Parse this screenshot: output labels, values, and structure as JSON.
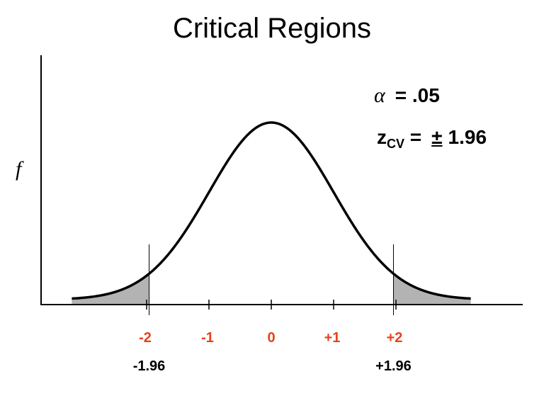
{
  "title": "Critical Regions",
  "y_axis_label": "f",
  "alpha": {
    "symbol": "α",
    "text": "= .05"
  },
  "z_cv": {
    "base": "z",
    "sub": "CV",
    "eq": "=",
    "pm": "±",
    "value": "1.96"
  },
  "colors": {
    "tick_labels": "#e8421c",
    "shade": "#b3b3b3",
    "curve": "#000000"
  },
  "chart_data": {
    "type": "area",
    "distribution": "standard normal",
    "x_range": [
      -3.2,
      3.2
    ],
    "tick_values": [
      -2,
      -1,
      0,
      1,
      2
    ],
    "tick_labels": [
      "-2",
      "-1",
      "0",
      "+1",
      "+2"
    ],
    "critical_values": [
      -1.96,
      1.96
    ],
    "critical_labels": [
      "-1.96",
      "+1.96"
    ],
    "shaded_regions": [
      "x < -1.96",
      "x > 1.96"
    ]
  }
}
